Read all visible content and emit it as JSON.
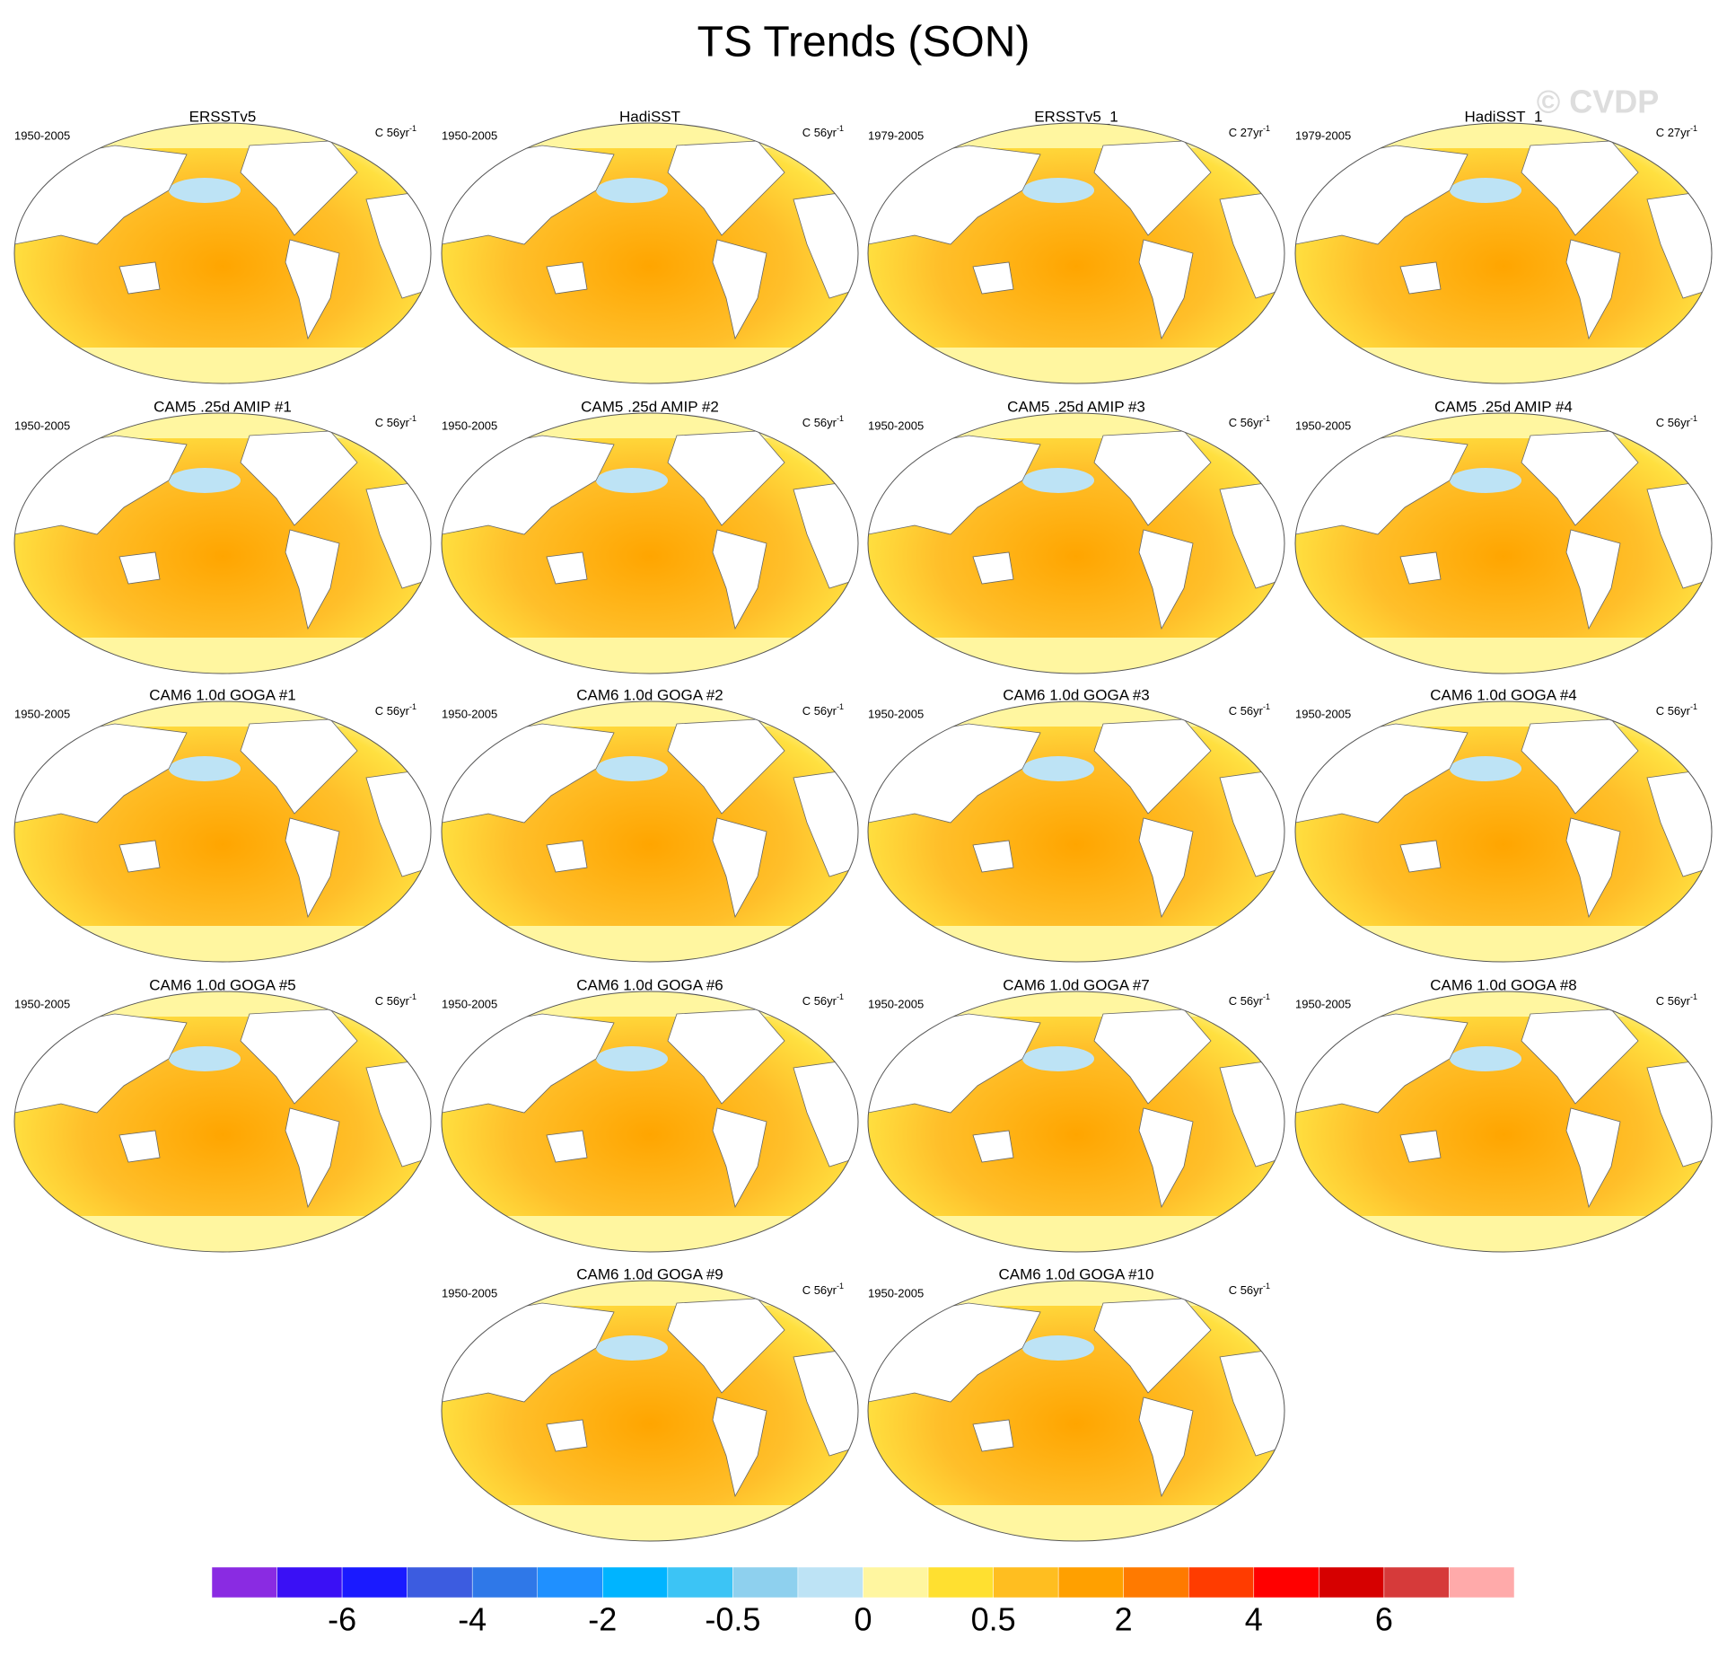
{
  "title": "TS Trends (SON)",
  "watermark": "© CVDP",
  "panels": [
    {
      "title": "ERSSTv5",
      "period": "1950-2005",
      "units": "C 56yr",
      "units_exp": "-1"
    },
    {
      "title": "HadiSST",
      "period": "1950-2005",
      "units": "C 56yr",
      "units_exp": "-1"
    },
    {
      "title": "ERSSTv5_1",
      "period": "1979-2005",
      "units": "C 27yr",
      "units_exp": "-1"
    },
    {
      "title": "HadiSST_1",
      "period": "1979-2005",
      "units": "C 27yr",
      "units_exp": "-1"
    },
    {
      "title": "CAM5 .25d AMIP #1",
      "period": "1950-2005",
      "units": "C 56yr",
      "units_exp": "-1"
    },
    {
      "title": "CAM5 .25d AMIP #2",
      "period": "1950-2005",
      "units": "C 56yr",
      "units_exp": "-1"
    },
    {
      "title": "CAM5 .25d AMIP #3",
      "period": "1950-2005",
      "units": "C 56yr",
      "units_exp": "-1"
    },
    {
      "title": "CAM5 .25d AMIP #4",
      "period": "1950-2005",
      "units": "C 56yr",
      "units_exp": "-1"
    },
    {
      "title": "CAM6 1.0d GOGA #1",
      "period": "1950-2005",
      "units": "C 56yr",
      "units_exp": "-1"
    },
    {
      "title": "CAM6 1.0d GOGA #2",
      "period": "1950-2005",
      "units": "C 56yr",
      "units_exp": "-1"
    },
    {
      "title": "CAM6 1.0d GOGA #3",
      "period": "1950-2005",
      "units": "C 56yr",
      "units_exp": "-1"
    },
    {
      "title": "CAM6 1.0d GOGA #4",
      "period": "1950-2005",
      "units": "C 56yr",
      "units_exp": "-1"
    },
    {
      "title": "CAM6 1.0d GOGA #5",
      "period": "1950-2005",
      "units": "C 56yr",
      "units_exp": "-1"
    },
    {
      "title": "CAM6 1.0d GOGA #6",
      "period": "1950-2005",
      "units": "C 56yr",
      "units_exp": "-1"
    },
    {
      "title": "CAM6 1.0d GOGA #7",
      "period": "1950-2005",
      "units": "C 56yr",
      "units_exp": "-1"
    },
    {
      "title": "CAM6 1.0d GOGA #8",
      "period": "1950-2005",
      "units": "C 56yr",
      "units_exp": "-1"
    },
    {
      "title": "CAM6 1.0d GOGA #9",
      "period": "1950-2005",
      "units": "C 56yr",
      "units_exp": "-1"
    },
    {
      "title": "CAM6 1.0d GOGA #10",
      "period": "1950-2005",
      "units": "C 56yr",
      "units_exp": "-1"
    }
  ],
  "colorbar": {
    "colors": [
      "#8a2be2",
      "#3a10f5",
      "#1a1aff",
      "#3c5ce0",
      "#2f78e8",
      "#1f90ff",
      "#00b4ff",
      "#3cc4f5",
      "#8ed0ee",
      "#bde3f5",
      "#fff6a0",
      "#ffe030",
      "#ffbe20",
      "#ffa000",
      "#ff7a00",
      "#ff3c00",
      "#ff0000",
      "#d60000",
      "#d63a3a",
      "#ffaaaa"
    ],
    "labels": [
      "-6",
      "-4",
      "-2",
      "-0.5",
      "0",
      "0.5",
      "2",
      "4",
      "6"
    ]
  }
}
